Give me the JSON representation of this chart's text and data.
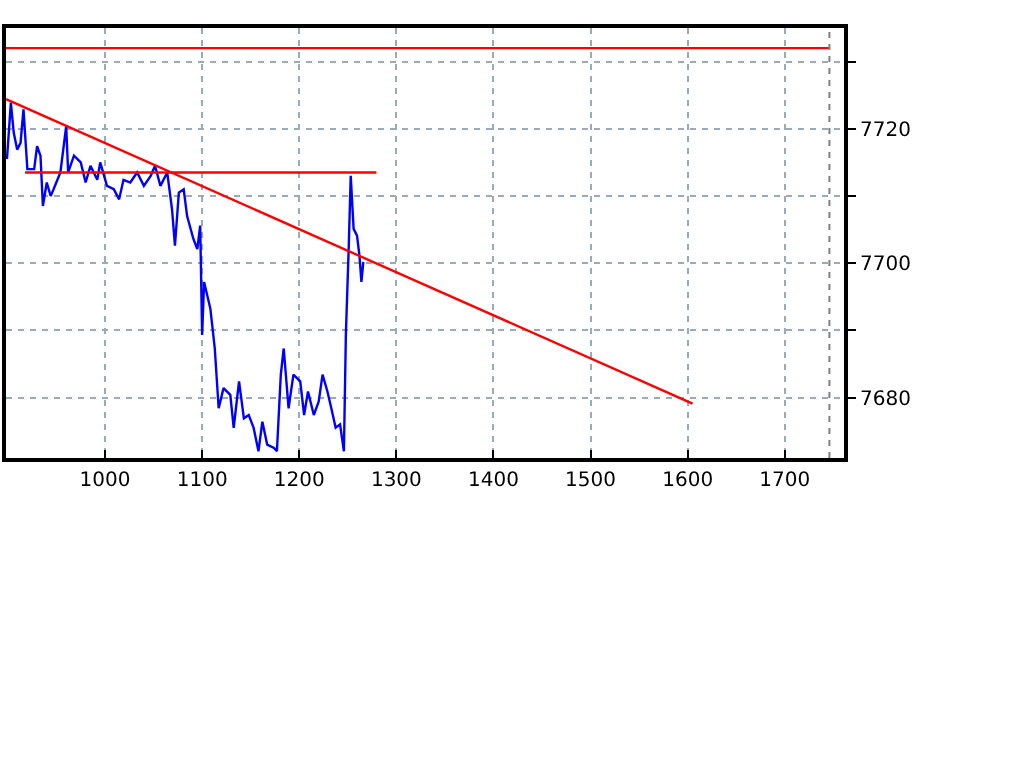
{
  "chart_data": {
    "type": "line",
    "xlim": [
      898,
      1761
    ],
    "ylim": [
      7671,
      7735
    ],
    "xticks": [
      1000,
      1100,
      1200,
      1300,
      1400,
      1500,
      1600,
      1700
    ],
    "yticks": [
      7680,
      {
        "value": 7690,
        "label": null
      },
      7700,
      {
        "value": 7710,
        "label": null
      },
      7720,
      {
        "value": 7730,
        "label": null
      }
    ],
    "grid": true,
    "line_style": "solid",
    "marker": "none",
    "ref_lines": [
      {
        "axis": "x",
        "value": 1746,
        "label": null,
        "color": "#808080",
        "line_style": "dotted"
      }
    ],
    "series": [
      {
        "color": "#0000ff",
        "x": [
          899,
          903,
          906,
          909.5,
          913,
          916,
          920,
          927,
          930,
          933.5,
          936,
          940,
          944,
          947,
          954,
          960,
          962,
          968,
          975,
          980,
          985,
          992,
          995,
          1002,
          1009,
          1014.5,
          1019,
          1026,
          1033,
          1040,
          1047,
          1051.5,
          1057,
          1064,
          1069,
          1072,
          1076,
          1081,
          1084.5,
          1091,
          1095,
          1098,
          1100,
          1102,
          1108.5,
          1113,
          1117,
          1122,
          1129,
          1132.5,
          1138,
          1143,
          1148,
          1153,
          1158,
          1162,
          1167,
          1174,
          1177,
          1181,
          1184,
          1189,
          1194,
          1201,
          1205,
          1209,
          1215,
          1220,
          1224,
          1229,
          1233,
          1237.5,
          1242,
          1246,
          1248,
          1251,
          1253,
          1256,
          1259.5,
          1262,
          1264,
          1266
        ],
        "values": [
          7715.5,
          7723.9,
          7719.4,
          7716.9,
          7717.9,
          7722.9,
          7714,
          7714,
          7717.4,
          7716,
          7708.5,
          7712,
          7710,
          7711,
          7713.5,
          7720.4,
          7713.5,
          7716,
          7715,
          7712,
          7714.5,
          7712.4,
          7715,
          7711.5,
          7711,
          7709.5,
          7712.4,
          7712,
          7713.5,
          7711.5,
          7713,
          7714.5,
          7711.5,
          7713.5,
          7708,
          7702.6,
          7710.5,
          7711,
          7707,
          7703.6,
          7702.1,
          7705.6,
          7689.3,
          7697.2,
          7693.2,
          7687.3,
          7678.4,
          7681.4,
          7680.4,
          7675.5,
          7682.4,
          7676.9,
          7677.4,
          7675.5,
          7672,
          7676.4,
          7673,
          7672.5,
          7672,
          7683.4,
          7687.3,
          7678.4,
          7683.4,
          7682.4,
          7677.4,
          7680.9,
          7677.4,
          7679.4,
          7683.4,
          7680.9,
          7678.4,
          7675.5,
          7676,
          7672,
          7689.3,
          7702.6,
          7713,
          7705.1,
          7704.1,
          7701.1,
          7697.2,
          7700.2
        ]
      },
      {
        "color": "#ff0000",
        "x": [
          898,
          1605
        ],
        "values": [
          7724.4,
          7679.1
        ]
      },
      {
        "color": "#ff0000",
        "x": [
          917.6,
          1279.5
        ],
        "values": [
          7713.5,
          7713.5
        ]
      },
      {
        "color": "#ff0000",
        "x": [
          898,
          1746
        ],
        "values": [
          7732,
          7732
        ]
      }
    ]
  }
}
